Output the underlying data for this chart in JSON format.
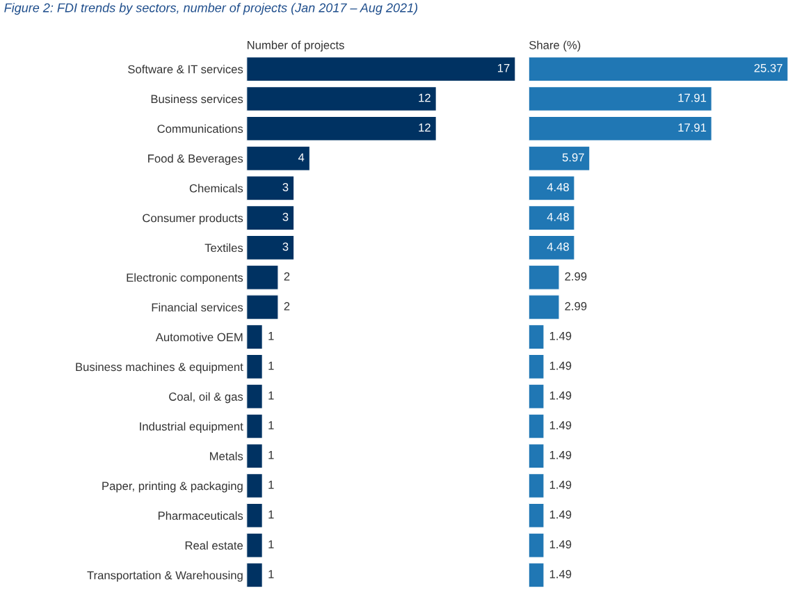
{
  "chart_data": [
    {
      "type": "bar",
      "orientation": "horizontal",
      "title": "Figure 2: FDI trends by sectors, number of projects (Jan 2017 – Aug 2021)",
      "subtitle": "Number of projects",
      "categories": [
        "Software & IT services",
        "Business services",
        "Communications",
        "Food & Beverages",
        "Chemicals",
        "Consumer products",
        "Textiles",
        "Electronic components",
        "Financial services",
        "Automotive OEM",
        "Business machines & equipment",
        "Coal, oil & gas",
        "Industrial equipment",
        "Metals",
        "Paper, printing & packaging",
        "Pharmaceuticals",
        "Real estate",
        "Transportation & Warehousing"
      ],
      "values": [
        17,
        12,
        12,
        4,
        3,
        3,
        3,
        2,
        2,
        1,
        1,
        1,
        1,
        1,
        1,
        1,
        1,
        1
      ],
      "color": "#003262",
      "xlim": [
        0,
        17
      ],
      "data_labels": true,
      "tick_labels": "y"
    },
    {
      "type": "bar",
      "orientation": "horizontal",
      "subtitle": "Share (%)",
      "categories": [
        null,
        null,
        null,
        null,
        null,
        null,
        null,
        null,
        null,
        null,
        null,
        null,
        null,
        null,
        null,
        null,
        null,
        null
      ],
      "values": [
        25.37,
        17.91,
        17.91,
        5.97,
        4.48,
        4.48,
        4.48,
        2.99,
        2.99,
        1.49,
        1.49,
        1.49,
        1.49,
        1.49,
        1.49,
        1.49,
        1.49,
        1.49
      ],
      "color": "#2077b4",
      "xlim": [
        0,
        25.37
      ],
      "data_labels": true,
      "tick_labels": false
    }
  ]
}
